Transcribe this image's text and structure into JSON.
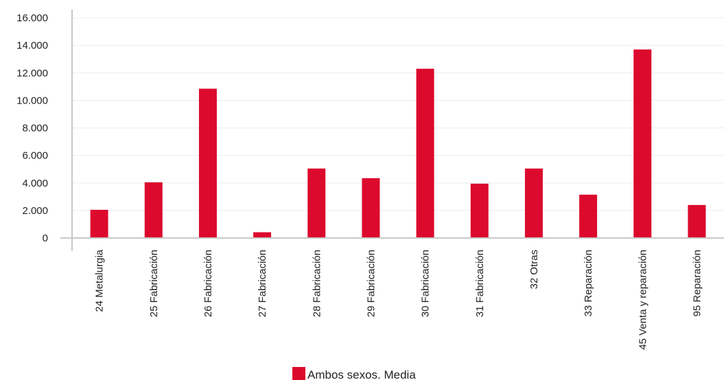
{
  "chart_data": {
    "type": "bar",
    "categories": [
      "24 Metalurgia",
      "25 Fabricación",
      "26 Fabricación",
      "27 Fabricación",
      "28 Fabricación",
      "29 Fabricación",
      "30 Fabricación",
      "31 Fabricación",
      "32 Otras",
      "33 Reparación",
      "45 Venta y reparación",
      "95 Reparación"
    ],
    "series": [
      {
        "name": "Ambos sexos. Media",
        "color": "#dc0a2d",
        "values": [
          2050,
          4050,
          10850,
          420,
          5050,
          4350,
          12300,
          3950,
          5050,
          3150,
          13700,
          2400
        ]
      }
    ],
    "yticks": [
      "0",
      "2.000",
      "4.000",
      "6.000",
      "8.000",
      "10.000",
      "12.000",
      "14.000",
      "16.000"
    ],
    "ylim": [
      0,
      16000
    ],
    "grid": true,
    "legend_position": "bottom-center",
    "colors": {
      "bar": "#dc0a2d",
      "grid": "#ececec",
      "axis": "#c8c8c8"
    }
  }
}
